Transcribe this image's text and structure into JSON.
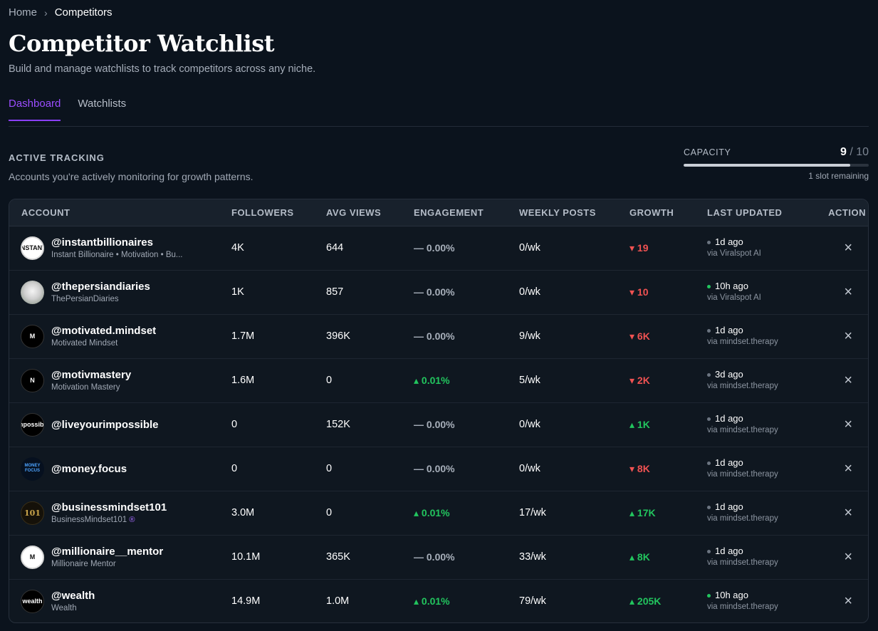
{
  "breadcrumb": {
    "home": "Home",
    "separator": "›",
    "current": "Competitors"
  },
  "header": {
    "title": "Competitor Watchlist",
    "subtitle": "Build and manage watchlists to track competitors across any niche."
  },
  "tabs": [
    {
      "label": "Dashboard",
      "active": true
    },
    {
      "label": "Watchlists",
      "active": false
    }
  ],
  "section": {
    "title": "ACTIVE TRACKING",
    "description": "Accounts you're actively monitoring for growth patterns."
  },
  "capacity": {
    "label": "CAPACITY",
    "used": "9",
    "total": "/ 10",
    "fraction": 0.9,
    "remaining": "1 slot remaining"
  },
  "table": {
    "columns": [
      "ACCOUNT",
      "FOLLOWERS",
      "AVG VIEWS",
      "ENGAGEMENT",
      "WEEKLY POSTS",
      "GROWTH",
      "LAST UPDATED",
      "ACTION"
    ],
    "rows": [
      {
        "handle": "@instantbillionaires",
        "name": "Instant Billionaire • Motivation • Bu...",
        "avatar_style": "light",
        "avatar_text": "INSTANT",
        "followers": "4K",
        "avg_views": "644",
        "engagement": "— 0.00%",
        "eng_trend": "neutral",
        "weekly_posts": "0/wk",
        "growth": "▾ 19",
        "growth_trend": "down",
        "updated": "1d ago",
        "live": false,
        "source": "via Viralspot AI"
      },
      {
        "handle": "@thepersiandiaries",
        "name": "ThePersianDiaries",
        "avatar_style": "photo",
        "avatar_text": "",
        "followers": "1K",
        "avg_views": "857",
        "engagement": "— 0.00%",
        "eng_trend": "neutral",
        "weekly_posts": "0/wk",
        "growth": "▾ 10",
        "growth_trend": "down",
        "updated": "10h ago",
        "live": true,
        "source": "via Viralspot AI"
      },
      {
        "handle": "@motivated.mindset",
        "name": "Motivated Mindset",
        "avatar_style": "dark",
        "avatar_text": "M",
        "followers": "1.7M",
        "avg_views": "396K",
        "engagement": "— 0.00%",
        "eng_trend": "neutral",
        "weekly_posts": "9/wk",
        "growth": "▾ 6K",
        "growth_trend": "down",
        "updated": "1d ago",
        "live": false,
        "source": "via mindset.therapy"
      },
      {
        "handle": "@motivmastery",
        "name": "Motivation Mastery",
        "avatar_style": "dark",
        "avatar_text": "N",
        "followers": "1.6M",
        "avg_views": "0",
        "engagement": "▴ 0.01%",
        "eng_trend": "up",
        "weekly_posts": "5/wk",
        "growth": "▾ 2K",
        "growth_trend": "down",
        "updated": "3d ago",
        "live": false,
        "source": "via mindset.therapy"
      },
      {
        "handle": "@liveyourimpossible",
        "name": "",
        "avatar_style": "dark",
        "avatar_text": "impossible",
        "followers": "0",
        "avg_views": "152K",
        "engagement": "— 0.00%",
        "eng_trend": "neutral",
        "weekly_posts": "0/wk",
        "growth": "▴ 1K",
        "growth_trend": "up",
        "updated": "1d ago",
        "live": false,
        "source": "via mindset.therapy"
      },
      {
        "handle": "@money.focus",
        "name": "",
        "avatar_style": "blue",
        "avatar_text": "MONEY FOCUS",
        "followers": "0",
        "avg_views": "0",
        "engagement": "— 0.00%",
        "eng_trend": "neutral",
        "weekly_posts": "0/wk",
        "growth": "▾ 8K",
        "growth_trend": "down",
        "updated": "1d ago",
        "live": false,
        "source": "via mindset.therapy"
      },
      {
        "handle": "@businessmindset101",
        "name": "BusinessMindset101",
        "verified": "®",
        "avatar_style": "gold",
        "avatar_text": "101",
        "followers": "3.0M",
        "avg_views": "0",
        "engagement": "▴ 0.01%",
        "eng_trend": "up",
        "weekly_posts": "17/wk",
        "growth": "▴ 17K",
        "growth_trend": "up",
        "updated": "1d ago",
        "live": false,
        "source": "via mindset.therapy"
      },
      {
        "handle": "@millionaire__mentor",
        "name": "Millionaire Mentor",
        "avatar_style": "light",
        "avatar_text": "M",
        "followers": "10.1M",
        "avg_views": "365K",
        "engagement": "— 0.00%",
        "eng_trend": "neutral",
        "weekly_posts": "33/wk",
        "growth": "▴ 8K",
        "growth_trend": "up",
        "updated": "1d ago",
        "live": false,
        "source": "via mindset.therapy"
      },
      {
        "handle": "@wealth",
        "name": "Wealth",
        "avatar_style": "dark",
        "avatar_text": "wealth",
        "followers": "14.9M",
        "avg_views": "1.0M",
        "engagement": "▴ 0.01%",
        "eng_trend": "up",
        "weekly_posts": "79/wk",
        "growth": "▴ 205K",
        "growth_trend": "up",
        "updated": "10h ago",
        "live": true,
        "source": "via mindset.therapy"
      }
    ],
    "remove_icon": "×"
  }
}
